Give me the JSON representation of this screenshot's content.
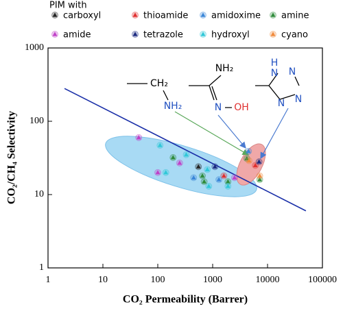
{
  "chart_data": {
    "type": "scatter",
    "legend_title": "PIM with",
    "x_label": "CO₂ Permeability (Barrer)",
    "y_label": "CO₂/CH₄ Selectivity",
    "xscale": "log",
    "yscale": "log",
    "xlim": [
      1,
      100000
    ],
    "ylim": [
      1,
      1000
    ],
    "xticks": [
      1,
      10,
      100,
      1000,
      10000,
      100000
    ],
    "yticks": [
      1,
      10,
      100,
      1000
    ],
    "series": [
      {
        "name": "carboxyl",
        "color": "#222222",
        "x": [
          550
        ],
        "values": [
          24
        ]
      },
      {
        "name": "thioamide",
        "color": "#e03030",
        "x": [
          1600,
          6000
        ],
        "values": [
          18,
          25
        ]
      },
      {
        "name": "amidoxime",
        "color": "#3a86d8",
        "x": [
          450,
          1300,
          4500
        ],
        "values": [
          17,
          16,
          39
        ]
      },
      {
        "name": "amine",
        "color": "#2e8b3a",
        "x": [
          190,
          650,
          700,
          1900,
          4200,
          7200
        ],
        "values": [
          32,
          18,
          15,
          15,
          31,
          16
        ]
      },
      {
        "name": "amide",
        "color": "#c040c8",
        "x": [
          45,
          100,
          250,
          2500
        ],
        "values": [
          60,
          20,
          27,
          17
        ]
      },
      {
        "name": "tetrazole",
        "color": "#1c2a80",
        "x": [
          1100,
          7000
        ],
        "values": [
          24,
          28
        ]
      },
      {
        "name": "hydroxyl",
        "color": "#30c8d8",
        "x": [
          110,
          140,
          330,
          800,
          850,
          1900
        ],
        "values": [
          47,
          20,
          35,
          22,
          13,
          13
        ]
      },
      {
        "name": "cyano",
        "color": "#f08a3c",
        "x": [
          4600,
          7200
        ],
        "values": [
          29,
          18
        ]
      }
    ],
    "lines": [
      {
        "color": "#1a2fa8",
        "x": [
          2,
          50000
        ],
        "values": [
          280,
          6
        ]
      }
    ],
    "annotations": [
      "CH₂",
      "NH₂",
      "NH₂",
      "N",
      "OH",
      "H",
      "N",
      "N",
      "N",
      "N"
    ]
  }
}
